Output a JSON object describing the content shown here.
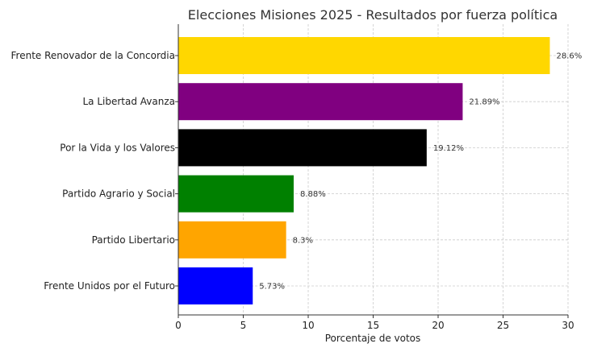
{
  "chart_data": {
    "type": "bar",
    "orientation": "horizontal",
    "title": "Elecciones Misiones 2025 - Resultados por fuerza política",
    "xlabel": "Porcentaje de votos",
    "ylabel": "",
    "xlim": [
      0,
      30
    ],
    "xticks": [
      0,
      5,
      10,
      15,
      20,
      25,
      30
    ],
    "grid": true,
    "categories": [
      "Frente Renovador de la Concordia",
      "La Libertad Avanza",
      "Por la Vida y los Valores",
      "Partido Agrario y Social",
      "Partido Libertario",
      "Frente Unidos por el Futuro"
    ],
    "values": [
      28.6,
      21.89,
      19.12,
      8.88,
      8.3,
      5.73
    ],
    "value_labels": [
      "28.6%",
      "21.89%",
      "19.12%",
      "8.88%",
      "8.3%",
      "5.73%"
    ],
    "colors": [
      "#FFD700",
      "#800080",
      "#000000",
      "#008000",
      "#FFA500",
      "#0000FF"
    ]
  }
}
